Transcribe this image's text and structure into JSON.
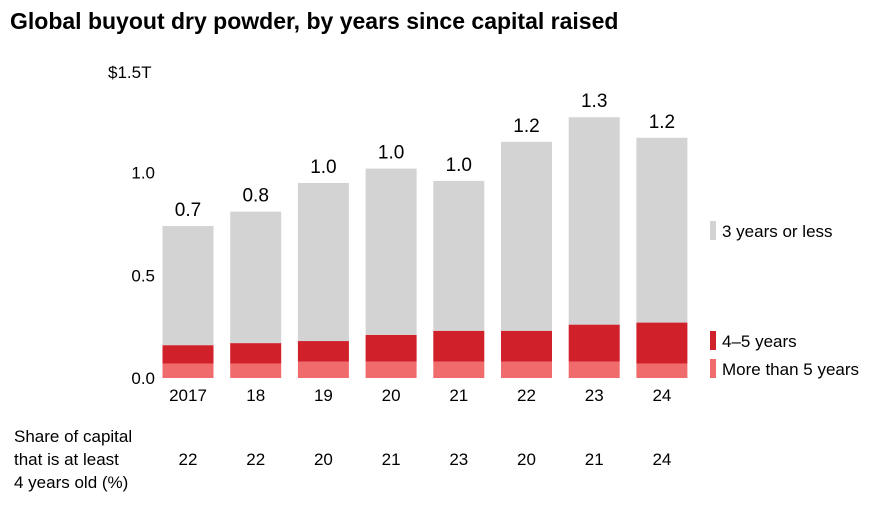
{
  "chart_data": {
    "type": "bar",
    "stacked": true,
    "title": "Global buyout dry powder, by years since capital raised",
    "y_unit_label": "$1.5T",
    "yticks": [
      "0.0",
      "0.5",
      "1.0"
    ],
    "ylim": [
      0,
      1.5
    ],
    "categories": [
      "2017",
      "18",
      "19",
      "20",
      "21",
      "22",
      "23",
      "24"
    ],
    "series": [
      {
        "name": "More than 5 years",
        "color": "#f06b6b",
        "values": [
          0.07,
          0.07,
          0.08,
          0.08,
          0.08,
          0.08,
          0.08,
          0.07
        ]
      },
      {
        "name": "4–5 years",
        "color": "#d0202a",
        "values": [
          0.09,
          0.1,
          0.1,
          0.13,
          0.15,
          0.15,
          0.18,
          0.2
        ]
      },
      {
        "name": "3 years or less",
        "color": "#d3d3d3",
        "values": [
          0.58,
          0.64,
          0.77,
          0.81,
          0.73,
          0.92,
          1.01,
          0.9
        ]
      }
    ],
    "totals_labels": [
      "0.7",
      "0.8",
      "1.0",
      "1.0",
      "1.0",
      "1.2",
      "1.3",
      "1.2"
    ],
    "legend_position": "right",
    "grid": false
  },
  "share_row": {
    "label_lines": [
      "Share of capital",
      "that is at least",
      "4 years old (%)"
    ],
    "values": [
      "22",
      "22",
      "20",
      "21",
      "23",
      "20",
      "21",
      "24"
    ]
  }
}
